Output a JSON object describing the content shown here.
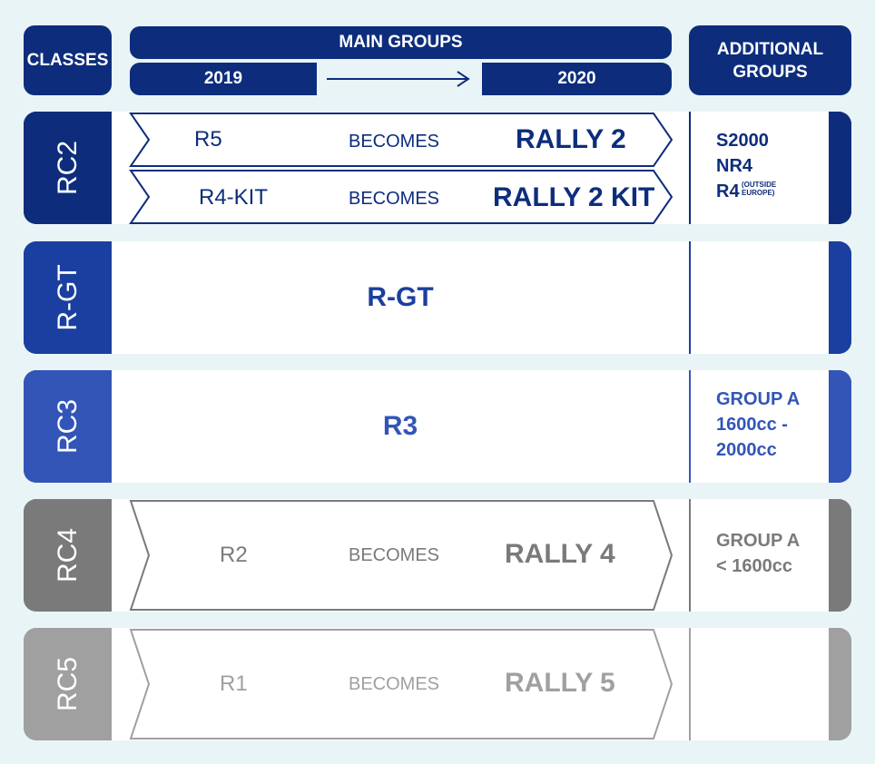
{
  "header": {
    "classes": "CLASSES",
    "main_groups": "MAIN GROUPS",
    "year_from": "2019",
    "year_to": "2020",
    "additional_groups": "ADDITIONAL GROUPS"
  },
  "rows": [
    {
      "class": "RC2",
      "color": "#0d2d7c",
      "chevrons": [
        {
          "from": "R5",
          "verb": "BECOMES",
          "to": "RALLY 2"
        },
        {
          "from": "R4-KIT",
          "verb": "BECOMES",
          "to": "RALLY 2 KIT"
        }
      ],
      "additional": {
        "line1": "S2000",
        "line2": "NR4",
        "line3": "R4",
        "note_line1": "(OUTSIDE",
        "note_line2": "EUROPE)"
      }
    },
    {
      "class": "R-GT",
      "color": "#1a3fa0",
      "main": "R-GT",
      "additional": ""
    },
    {
      "class": "RC3",
      "color": "#3355b8",
      "main": "R3",
      "additional": {
        "line1": "GROUP A",
        "line2": "1600cc -",
        "line3": "2000cc"
      }
    },
    {
      "class": "RC4",
      "color": "#7a7a7a",
      "chevrons": [
        {
          "from": "R2",
          "verb": "BECOMES",
          "to": "RALLY 4"
        }
      ],
      "additional": {
        "line1": "GROUP A",
        "line2": "< 1600cc"
      }
    },
    {
      "class": "RC5",
      "color": "#a0a0a0",
      "chevrons": [
        {
          "from": "R1",
          "verb": "BECOMES",
          "to": "RALLY 5"
        }
      ],
      "additional": ""
    }
  ]
}
